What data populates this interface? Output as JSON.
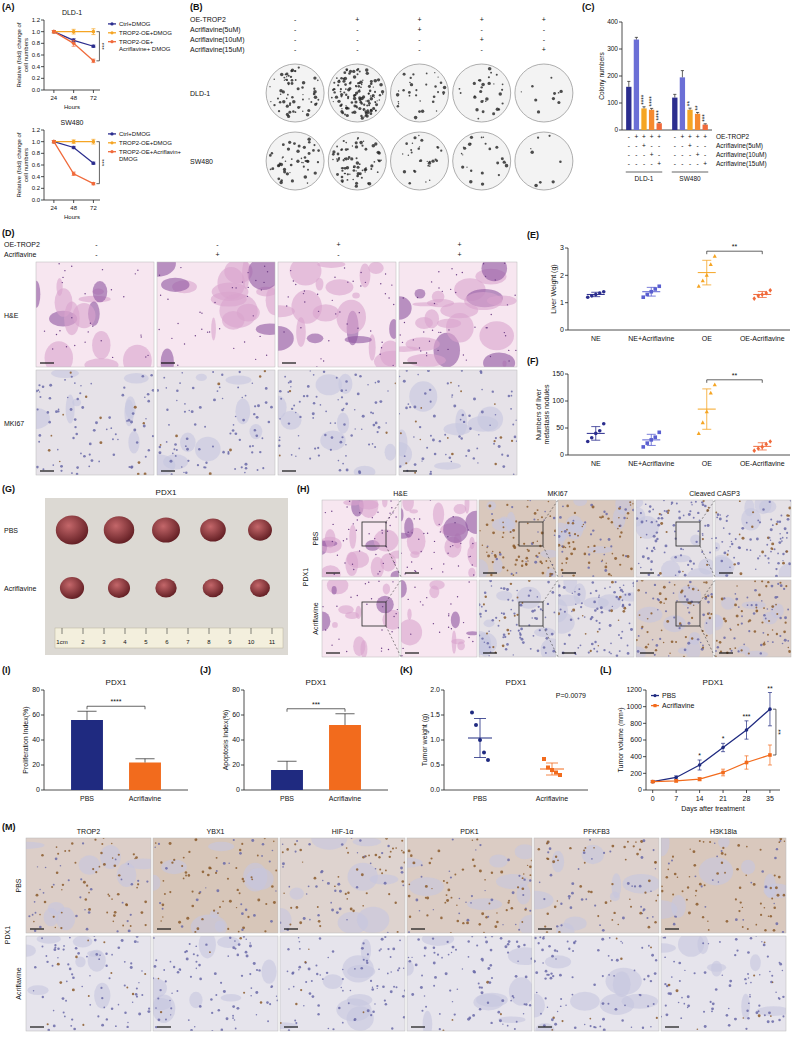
{
  "chart_data": [
    {
      "panel": "(A)",
      "type": "line",
      "title": "DLD-1",
      "x_label": "Hours",
      "y_label": "Relative (fold) change of cell numbers",
      "x": [
        24,
        48,
        72
      ],
      "xlim": [
        12,
        80
      ],
      "xticks": [
        24,
        48,
        72
      ],
      "ylim": [
        0,
        1.2
      ],
      "yticks": [
        {
          "value": 0,
          "label": "0.0"
        },
        0.2,
        0.4,
        0.6,
        0.8,
        {
          "value": 1,
          "label": "1.0"
        },
        1.2
      ],
      "legend": "right",
      "series": [
        {
          "name": "Ctrl+DMOG",
          "color": "#2b2d8e",
          "marker": "circle",
          "values": [
            1.0,
            0.85,
            0.75
          ],
          "errors": [
            0.02,
            0.03,
            0.02
          ]
        },
        {
          "name": "TROP2-OE+DMOG",
          "color": "#f5a524",
          "marker": "circle",
          "values": [
            1.0,
            1.0,
            1.0
          ],
          "errors": [
            0.02,
            0.04,
            0.05
          ]
        },
        {
          "name": "TROP2-OE+Acriflavine+ DMOG",
          "color": "#f06a3b",
          "marker": "circle",
          "values": [
            1.0,
            0.8,
            0.5
          ],
          "errors": [
            0.02,
            0.05,
            0.03
          ]
        }
      ],
      "brackets": [
        {
          "from": "TROP2-OE+DMOG",
          "to": "TROP2-OE+Acriflavine+ DMOG",
          "text": "***"
        }
      ]
    },
    {
      "type": "line",
      "title": "SW480",
      "x_label": "Hours",
      "y_label": "Relative (fold) change of cell numbers",
      "x": [
        24,
        48,
        72
      ],
      "xlim": [
        12,
        80
      ],
      "xticks": [
        24,
        48,
        72
      ],
      "ylim": [
        0,
        1.2
      ],
      "yticks": [
        {
          "value": 0,
          "label": "0.0"
        },
        0.2,
        0.4,
        0.6,
        0.8,
        {
          "value": 1,
          "label": "1.0"
        },
        1.2
      ],
      "legend": "right",
      "series": [
        {
          "name": "Ctrl+DMOG",
          "color": "#2b2d8e",
          "marker": "circle",
          "values": [
            1.0,
            0.9,
            0.63
          ],
          "errors": [
            0.02,
            0.02,
            0.02
          ]
        },
        {
          "name": "TROP2-OE+DMOG",
          "color": "#f5a524",
          "marker": "circle",
          "values": [
            1.0,
            1.0,
            1.0
          ],
          "errors": [
            0.02,
            0.03,
            0.04
          ]
        },
        {
          "name": "TROP2-OE+Acriflavin+ DMOG",
          "color": "#f06a3b",
          "marker": "circle",
          "values": [
            1.0,
            0.45,
            0.28
          ],
          "errors": [
            0.02,
            0.03,
            0.02
          ]
        }
      ],
      "brackets": [
        {
          "from": "TROP2-OE+DMOG",
          "to": "TROP2-OE+Acriflavin+ DMOG",
          "text": "***"
        }
      ]
    },
    {
      "panel": "(C)",
      "type": "bar",
      "y_label": "Colony numbers",
      "categories": [
        null,
        null,
        null,
        null,
        null,
        null,
        null,
        null,
        null,
        null
      ],
      "values": [
        160,
        335,
        80,
        75,
        25,
        120,
        195,
        75,
        60,
        20
      ],
      "errors": [
        20,
        8,
        6,
        5,
        3,
        12,
        25,
        6,
        5,
        3
      ],
      "colors": [
        "#2b2d8e",
        "#6b6fd6",
        "#f5a524",
        "#f58a30",
        "#f06a3b",
        "#2b2d8e",
        "#6b6fd6",
        "#f5a524",
        "#f58a30",
        "#f06a3b"
      ],
      "ylim": [
        0,
        400
      ],
      "yticks": [
        0,
        100,
        200,
        300,
        400
      ],
      "sig_labels": [
        null,
        null,
        "****",
        "****",
        "****",
        null,
        null,
        "**",
        "**",
        "***"
      ],
      "condition_table": {
        "rows": [
          {
            "label": "OE-TROP2",
            "signs": [
              "-",
              "+",
              "+",
              "+",
              "+",
              "-",
              "+",
              "+",
              "+",
              "+"
            ]
          },
          {
            "label": "Acriflavine(5uM)",
            "signs": [
              "-",
              "-",
              "+",
              "-",
              "-",
              "-",
              "-",
              "+",
              "-",
              "-"
            ]
          },
          {
            "label": "Acriflavine(10uM)",
            "signs": [
              "-",
              "-",
              "-",
              "+",
              "-",
              "-",
              "-",
              "-",
              "+",
              "-"
            ]
          },
          {
            "label": "Acriflavine(15uM)",
            "signs": [
              "-",
              "-",
              "-",
              "-",
              "+",
              "-",
              "-",
              "-",
              "-",
              "+"
            ]
          }
        ],
        "groups": [
          "DLD-1",
          "SW480"
        ]
      }
    },
    {
      "panel": "(E)",
      "type": "dot",
      "y_label": "Liver Weight (g)",
      "categories": [
        "NE",
        "NE+Acriflavine",
        "OE",
        "OE-Acriflavine"
      ],
      "colors": [
        "#2b2d8e",
        "#5a5fd0",
        "#f5a524",
        "#f06a3b"
      ],
      "points": [
        [
          1.2,
          1.25,
          1.3,
          1.35,
          1.4
        ],
        [
          1.2,
          1.3,
          1.4,
          1.5,
          1.6
        ],
        [
          1.6,
          1.8,
          2.0,
          2.4,
          2.7
        ],
        [
          1.15,
          1.25,
          1.3,
          1.35,
          1.45
        ]
      ],
      "means": [
        1.3,
        1.4,
        2.1,
        1.3
      ],
      "errors": [
        0.08,
        0.16,
        0.45,
        0.11
      ],
      "ylim": [
        0,
        3
      ],
      "yticks": [
        0,
        1,
        2,
        3
      ],
      "brackets": [
        {
          "from": "OE",
          "to": "OE-Acriflavine",
          "text": "**"
        }
      ]
    },
    {
      "panel": "(F)",
      "type": "dot",
      "y_label": "Numbers of liver metastasis nodules",
      "categories": [
        "NE",
        "NE+Acriflavine",
        "OE",
        "OE-Acriflavine"
      ],
      "colors": [
        "#2b2d8e",
        "#5a5fd0",
        "#f5a524",
        "#f06a3b"
      ],
      "points": [
        [
          25,
          32,
          40,
          45,
          58
        ],
        [
          15,
          22,
          28,
          33,
          42
        ],
        [
          40,
          60,
          80,
          115,
          130
        ],
        [
          8,
          12,
          15,
          20,
          25
        ]
      ],
      "means": [
        40,
        28,
        85,
        16
      ],
      "errors": [
        12.6,
        10.3,
        37.4,
        6.7
      ],
      "ylim": [
        0,
        150
      ],
      "yticks": [
        0,
        50,
        100,
        150
      ],
      "brackets": [
        {
          "from": "OE",
          "to": "OE-Acriflavine",
          "text": "**"
        }
      ]
    },
    {
      "panel": "(I)",
      "type": "bar",
      "title": "PDX1",
      "y_label": "Proliferation Index(%)",
      "categories": [
        "PBS",
        "Acriflavine"
      ],
      "values": [
        56,
        22
      ],
      "errors": [
        7,
        3
      ],
      "colors": [
        "#1f2a80",
        "#f26b1d"
      ],
      "ylim": [
        0,
        80
      ],
      "yticks": [
        0,
        20,
        40,
        60,
        80
      ],
      "brackets": [
        {
          "from": "PBS",
          "to": "Acriflavine",
          "text": "****"
        }
      ]
    },
    {
      "panel": "(J)",
      "type": "bar",
      "title": "PDX1",
      "y_label": "Apoptosis Index(%)",
      "categories": [
        "PBS",
        "Acriflavine"
      ],
      "values": [
        16,
        52
      ],
      "errors": [
        7,
        9
      ],
      "colors": [
        "#1f2a80",
        "#f26b1d"
      ],
      "ylim": [
        0,
        80
      ],
      "yticks": [
        0,
        20,
        40,
        60,
        80
      ],
      "brackets": [
        {
          "from": "PBS",
          "to": "Acriflavine",
          "text": "***"
        }
      ]
    },
    {
      "panel": "(K)",
      "type": "dot",
      "title": "PDX1",
      "y_label": "Tumor weight (g)",
      "categories": [
        "PBS",
        "Acriflavine"
      ],
      "colors": [
        "#1f2a80",
        "#f26b1d"
      ],
      "points": [
        [
          1.55,
          1.3,
          1.0,
          0.75,
          0.6
        ],
        [
          0.62,
          0.45,
          0.4,
          0.35,
          0.3
        ]
      ],
      "means": [
        1.04,
        0.42
      ],
      "errors": [
        0.39,
        0.12
      ],
      "ylim": [
        0,
        2
      ],
      "yticks": [
        {
          "value": 0,
          "label": "0.0"
        },
        0.5,
        {
          "value": 1,
          "label": "1.0"
        },
        1.5,
        {
          "value": 2,
          "label": "2.0"
        }
      ],
      "annotations": [
        "P=0.0079"
      ]
    },
    {
      "panel": "(L)",
      "type": "line",
      "title": "PDX1",
      "x_label": "Days after treatment",
      "y_label": "Tumor volume (mm³)",
      "x": [
        0,
        7,
        14,
        21,
        28,
        35
      ],
      "xlim": [
        -2,
        38
      ],
      "xticks": [
        0,
        7,
        14,
        21,
        28,
        35
      ],
      "ylim": [
        0,
        1200
      ],
      "yticks": [
        0,
        200,
        400,
        600,
        800,
        1000,
        1200
      ],
      "legend": "upper left",
      "series": [
        {
          "name": "PBS",
          "color": "#1f2a80",
          "marker": "circle",
          "values": [
            100,
            150,
            300,
            510,
            720,
            970
          ],
          "errors": [
            10,
            20,
            60,
            50,
            110,
            200
          ]
        },
        {
          "name": "Acriflavine",
          "color": "#f26b1d",
          "marker": "square",
          "values": [
            100,
            110,
            130,
            210,
            330,
            420
          ],
          "errors": [
            10,
            15,
            20,
            40,
            80,
            120
          ]
        }
      ],
      "sig_labels": [
        null,
        null,
        "*",
        "*",
        "***",
        "**"
      ],
      "brackets": [
        {
          "from": "PBS",
          "to": "Acriflavine",
          "text": "**"
        }
      ]
    }
  ],
  "images": {
    "B": {
      "panel": "(B)",
      "rows": [
        {
          "label": "OE-TROP2",
          "signs": [
            "-",
            "+",
            "+",
            "+",
            "+"
          ]
        },
        {
          "label": "Acriflavine(5uM)",
          "signs": [
            "-",
            "-",
            "+",
            "-",
            "-"
          ]
        },
        {
          "label": "Acriflavine(10uM)",
          "signs": [
            "-",
            "-",
            "-",
            "+",
            "-"
          ]
        },
        {
          "label": "Acriflavine(15uM)",
          "signs": [
            "-",
            "-",
            "-",
            "-",
            "+"
          ]
        }
      ],
      "cell_lines": [
        "DLD-1",
        "SW480"
      ]
    },
    "D": {
      "panel": "(D)",
      "rows": [
        {
          "label": "OE-TROP2",
          "signs": [
            "-",
            "-",
            "+",
            "+"
          ]
        },
        {
          "label": "Acriflavine",
          "signs": [
            "-",
            "+",
            "-",
            "+"
          ]
        }
      ],
      "stains": [
        "H&E",
        "MKI67"
      ]
    },
    "G": {
      "panel": "(G)",
      "title": "PDX1",
      "groups": [
        "PBS",
        "Acriflavine"
      ],
      "ruler": [
        "1cm",
        "2",
        "3",
        "4",
        "5",
        "6",
        "7",
        "8",
        "9",
        "10",
        "11"
      ]
    },
    "H": {
      "panel": "(H)",
      "model": "PDX1",
      "groups": [
        "PBS",
        "Acriflavine"
      ],
      "stains": [
        "H&E",
        "MKI67",
        "Cleaved CASP3"
      ]
    },
    "M": {
      "panel": "(M)",
      "model": "PDX1",
      "groups": [
        "PBS",
        "Acriflavine"
      ],
      "stains": [
        "TROP2",
        "YBX1",
        "HIF-1α",
        "PDK1",
        "PFKFB3",
        "H3K18la"
      ]
    }
  }
}
